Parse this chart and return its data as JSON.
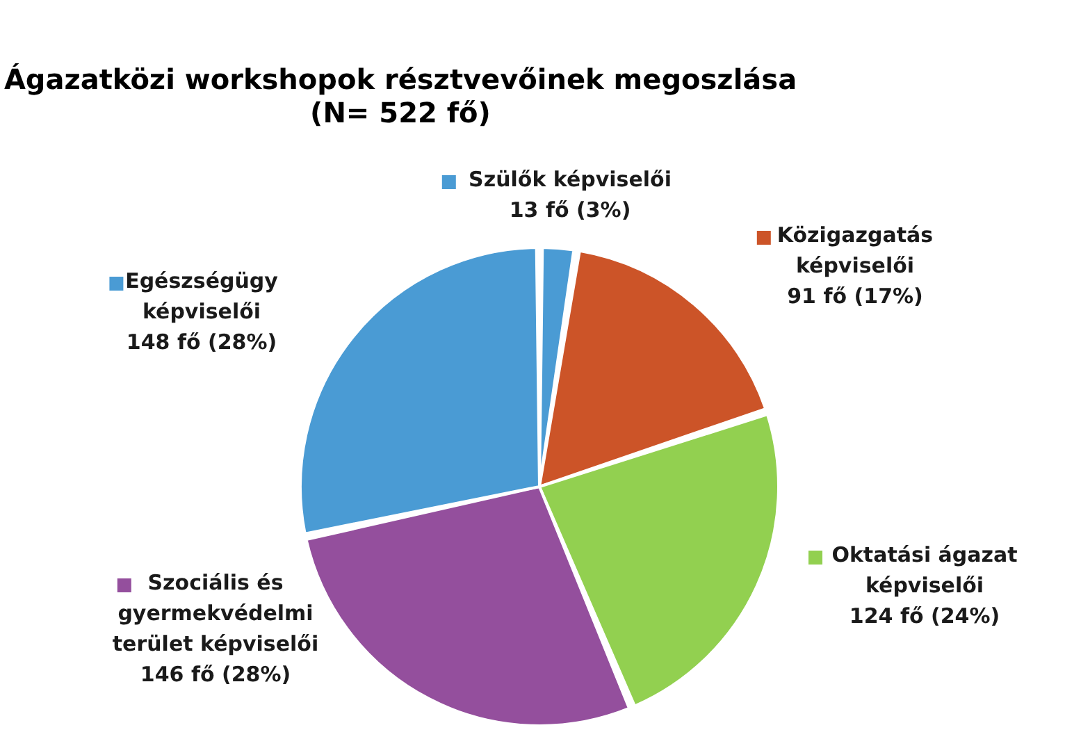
{
  "chart_data": {
    "type": "pie",
    "title": "Ágazatközi workshopok résztvevőinek megoszlása",
    "subtitle": "(N= 522 fő)",
    "categories": [
      "Szülők képviselői",
      "Közigazgatás képviselői",
      "Oktatási ágazat képviselői",
      "Szociális és gyermekvédelmi terület képviselői",
      "Egészségügy képviselői"
    ],
    "values": [
      13,
      91,
      124,
      146,
      148
    ],
    "colors": [
      "#4a9bd4",
      "#cc5428",
      "#92d050",
      "#944f9d",
      "#4a9bd4"
    ],
    "legend": "right",
    "value_labels": [
      "13 fő (3%)",
      "91 fő (17%)",
      "124 fő (24%)",
      "146 fő (28%)",
      "148 fő (28%)"
    ]
  }
}
